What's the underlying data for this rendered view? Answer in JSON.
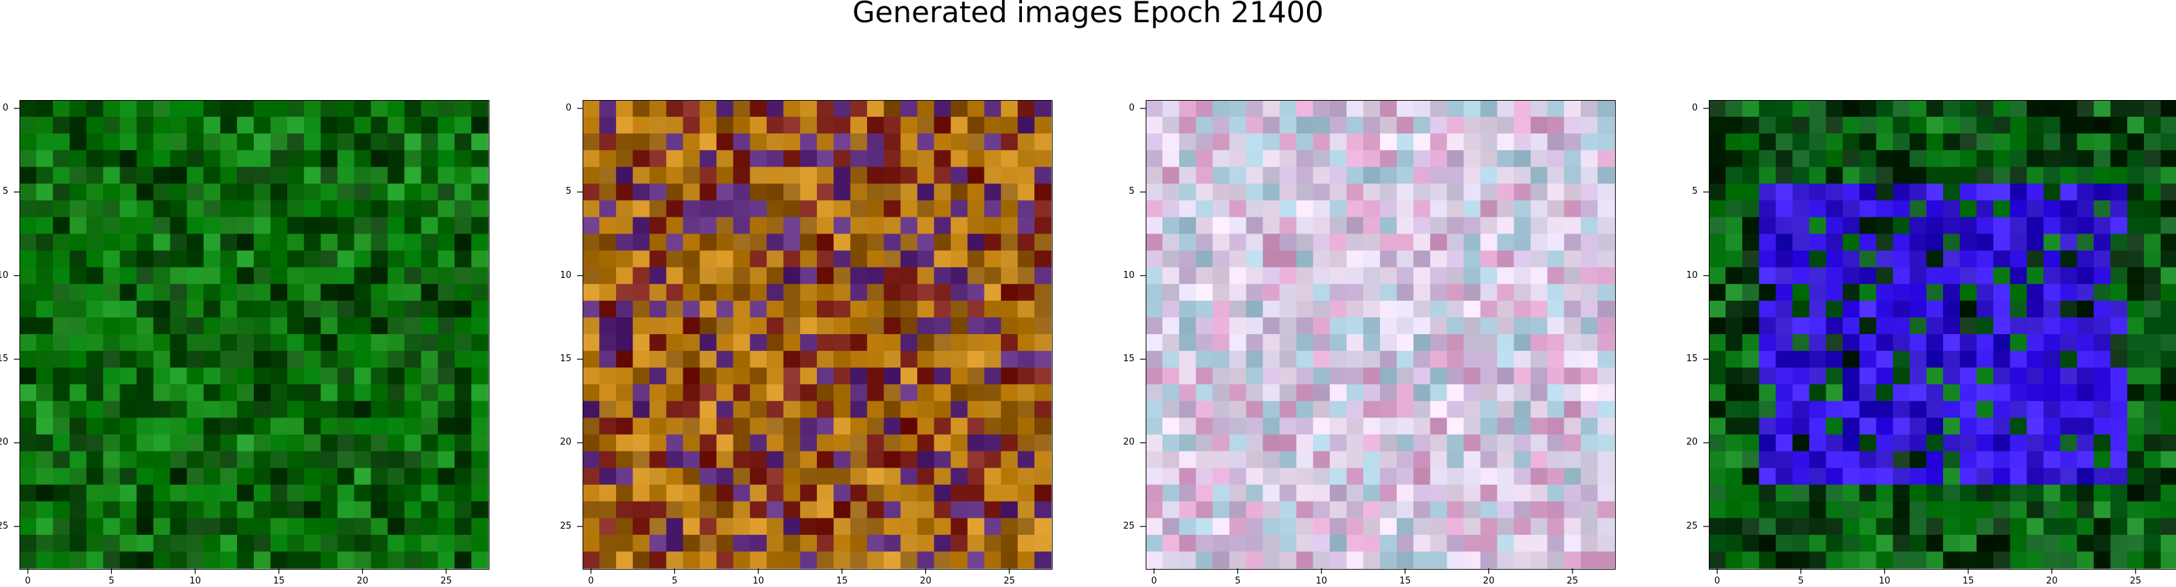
{
  "title": "Generated images Epoch 21400",
  "chart_data": {
    "type": "heatmap",
    "title": "Generated images Epoch 21400",
    "grid": false,
    "image_shape": [
      28,
      28
    ],
    "xlim": [
      -0.5,
      27.5
    ],
    "ylim": [
      27.5,
      -0.5
    ],
    "x_ticks": [
      "0",
      "5",
      "10",
      "15",
      "20",
      "25"
    ],
    "y_ticks": [
      "0",
      "5",
      "10",
      "15",
      "20",
      "25"
    ],
    "panels": [
      {
        "dominant_colors": [
          "#0a6a0a",
          "#075207",
          "#0c7f0c",
          "#043a04",
          "#13911b"
        ]
      },
      {
        "dominant_colors": [
          "#b47a10",
          "#c98a1a",
          "#8e5a0b",
          "#7a2018",
          "#5a2a7a"
        ]
      },
      {
        "dominant_colors": [
          "#d8d0e6",
          "#e8d8ec",
          "#c9b4d8",
          "#a6c8d8",
          "#d8a0c8"
        ]
      },
      {
        "dominant_colors": [
          "#0a5a1a",
          "#042a0a",
          "#3a1af0",
          "#2a10c0",
          "#10801a"
        ]
      }
    ]
  }
}
